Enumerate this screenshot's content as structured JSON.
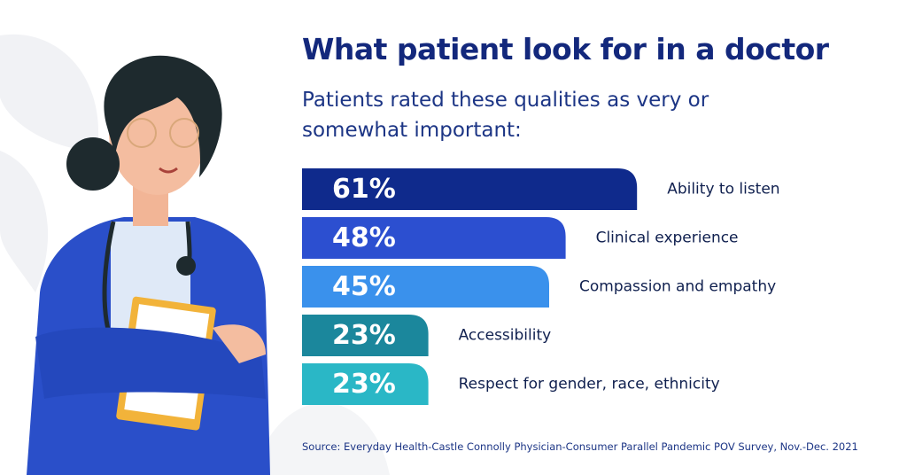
{
  "chart_data": {
    "type": "bar",
    "orientation": "horizontal",
    "title": "What patient look for in a doctor",
    "subtitle": "Patients rated these qualities as very or somewhat important:",
    "categories": [
      "Ability to listen",
      "Clinical experience",
      "Compassion and empathy",
      "Accessibility",
      "Respect for gender, race, ethnicity"
    ],
    "values": [
      61,
      48,
      45,
      23,
      23
    ],
    "value_labels": [
      "61%",
      "48%",
      "45%",
      "23%",
      "23%"
    ],
    "colors": [
      "#0f2a8c",
      "#2c4fd0",
      "#3a91ec",
      "#1b879c",
      "#2ab7c6"
    ],
    "source": "Source: Everyday Health-Castle Connolly Physician-Consumer Parallel Pandemic POV Survey, Nov.-Dec. 2021"
  }
}
